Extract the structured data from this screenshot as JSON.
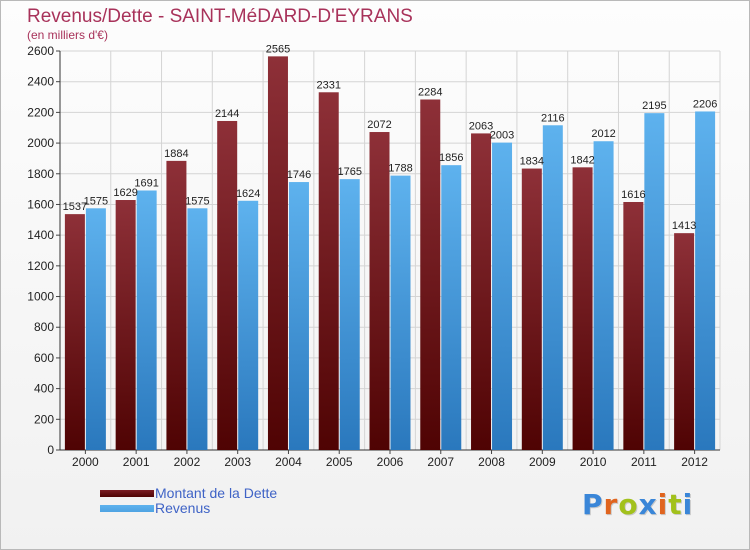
{
  "chart_data": {
    "type": "bar",
    "title": "Revenus/Dette - SAINT-MéDARD-D'EYRANS",
    "subtitle": "(en milliers d'€)",
    "categories": [
      "2000",
      "2001",
      "2002",
      "2003",
      "2004",
      "2005",
      "2006",
      "2007",
      "2008",
      "2009",
      "2010",
      "2011",
      "2012"
    ],
    "series": [
      {
        "name": "Montant de la Dette",
        "color": "#7a1e24",
        "values": [
          1537,
          1629,
          1884,
          2144,
          2565,
          2331,
          2072,
          2284,
          2063,
          1834,
          1842,
          1616,
          1413
        ],
        "labels": [
          "1537",
          "1629",
          "1884",
          "2144",
          "2565",
          "2331",
          "2072",
          "2284",
          "2063",
          "1834",
          "1842",
          "1616",
          "1413"
        ]
      },
      {
        "name": "Revenus",
        "color": "#4fa3e2",
        "values": [
          1575,
          1691,
          1575,
          1624,
          1746,
          1765,
          1788,
          1856,
          2003,
          2116,
          2012,
          2195,
          2206
        ],
        "labels": [
          "1575",
          "1691",
          "1575",
          "1624",
          "1746",
          "1765",
          "1788",
          "1856",
          "2003",
          "2116",
          "2012",
          "2195",
          "2206"
        ]
      }
    ],
    "ylim": [
      0,
      2600
    ],
    "yticks": [
      0,
      200,
      400,
      600,
      800,
      1000,
      1200,
      1400,
      1600,
      1800,
      2000,
      2200,
      2400,
      2600
    ],
    "grid": true,
    "legend_position": "bottom-left"
  },
  "logo": {
    "letters": [
      {
        "char": "P",
        "color": "#3a86d8"
      },
      {
        "char": "r",
        "color": "#e0641e"
      },
      {
        "char": "o",
        "color": "#a2c11c"
      },
      {
        "char": "x",
        "color": "#3a86d8"
      },
      {
        "char": "i",
        "color": "#e0641e"
      },
      {
        "char": "t",
        "color": "#a2c11c"
      },
      {
        "char": "i",
        "color": "#3a86d8"
      }
    ]
  }
}
